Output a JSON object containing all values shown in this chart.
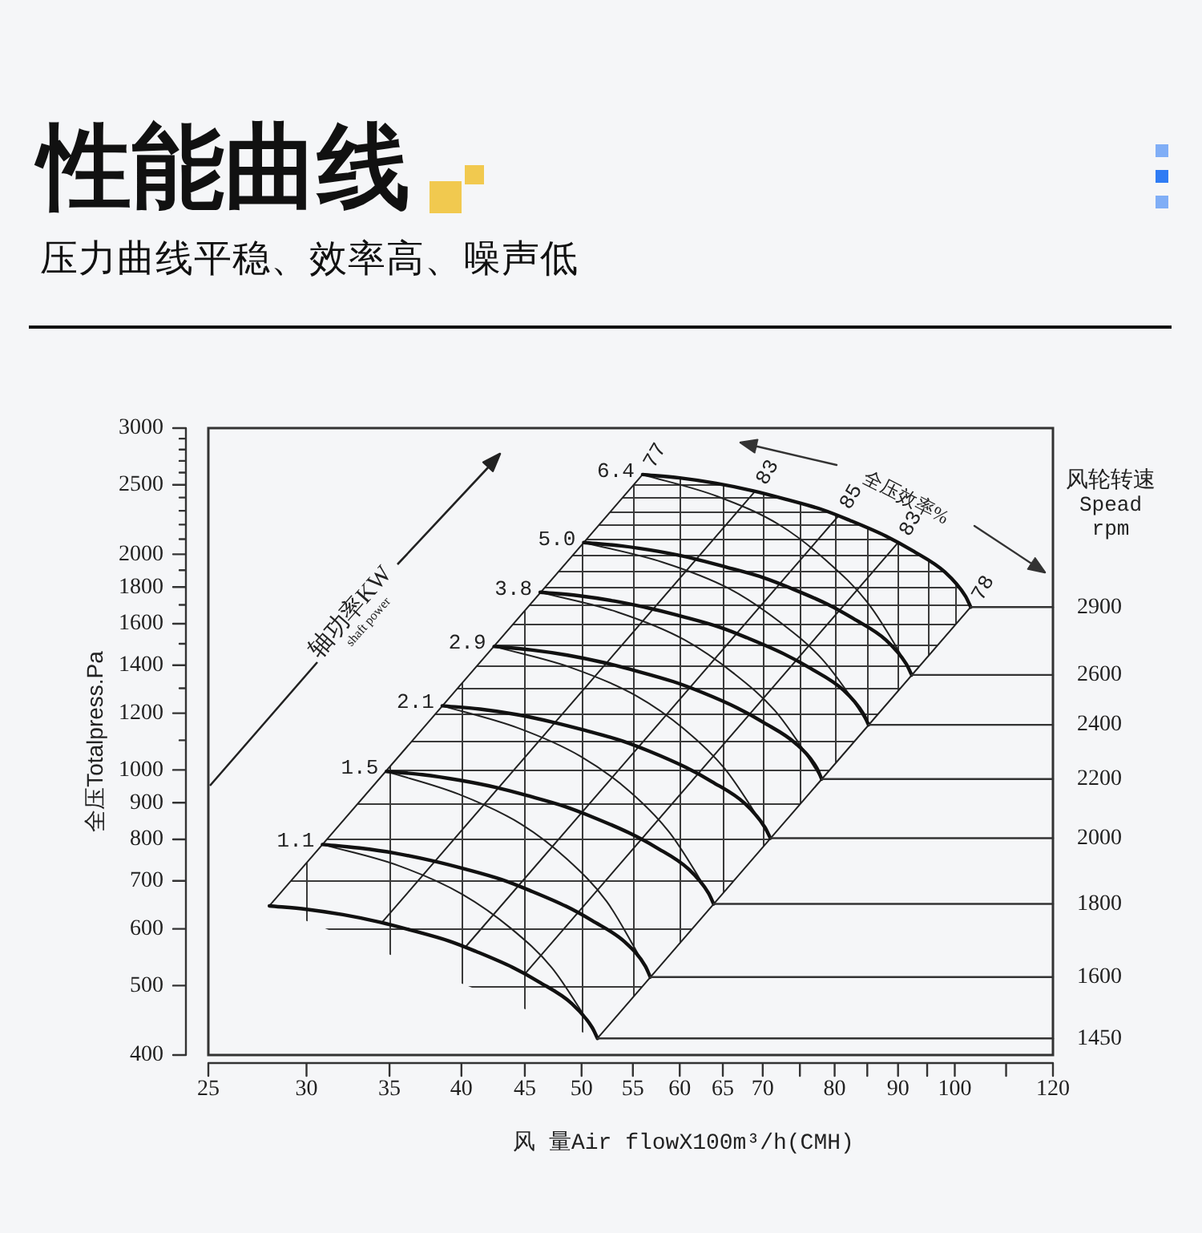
{
  "chart_data": {
    "type": "line",
    "title": "性能曲线",
    "subtitle": "压力曲线平稳、效率高、噪声低",
    "xlabel": "风 量Air flowX100m³/h(CMH)",
    "ylabel": "全压Totalpress.Pa",
    "annotations": [
      "轴功率KW",
      "shaft power",
      "全压效率%",
      "风轮转速\nSpead\nrpm",
      {
        "text": "2900",
        "x": 103,
        "y": 1688
      },
      {
        "text": "2600",
        "x": 92.3,
        "y": 1357
      },
      {
        "text": "2400",
        "x": 85.2,
        "y": 1156
      },
      {
        "text": "2200",
        "x": 78.1,
        "y": 971
      },
      {
        "text": "2000",
        "x": 71,
        "y": 803
      },
      {
        "text": "1800",
        "x": 63.9,
        "y": 650
      },
      {
        "text": "1600",
        "x": 56.8,
        "y": 514
      },
      {
        "text": "1450",
        "x": 51.5,
        "y": 422
      }
    ],
    "log": "xy",
    "grid": true,
    "marker": "none",
    "xlim": [
      25,
      120
    ],
    "xticks": [
      25,
      30,
      35,
      40,
      45,
      50,
      55,
      60,
      65,
      70,
      {
        "value": 75,
        "label": null
      },
      80,
      {
        "value": 85,
        "label": null
      },
      90,
      {
        "value": 95,
        "label": null
      },
      100,
      {
        "value": 110,
        "label": null
      },
      120
    ],
    "ylim": [
      400,
      3000
    ],
    "yticks": [
      400,
      500,
      600,
      700,
      800,
      900,
      1000,
      {
        "value": 1100,
        "label": null
      },
      1200,
      {
        "value": 1300,
        "label": null
      },
      1400,
      {
        "value": 1500,
        "label": null
      },
      1600,
      {
        "value": 1700,
        "label": null
      },
      1800,
      {
        "value": 1900,
        "label": null
      },
      2000,
      {
        "value": 2100,
        "label": null
      },
      {
        "value": 2200,
        "label": null
      },
      {
        "value": 2300,
        "label": null
      },
      {
        "value": 2400,
        "label": null
      },
      2500,
      {
        "value": 2600,
        "label": null
      },
      {
        "value": 2700,
        "label": null
      },
      {
        "value": 2800,
        "label": null
      },
      {
        "value": 2900,
        "label": null
      },
      3000
    ],
    "series": [
      {
        "color": "#111111",
        "x": [
          56,
          60,
          64.2,
          68.8,
          73,
          78.2,
          82.2,
          88,
          92.4,
          98.2,
          102,
          103
        ],
        "values": [
          2584,
          2556,
          2512,
          2452,
          2388,
          2308,
          2232,
          2120,
          2024,
          1888,
          1748,
          1688
        ]
      },
      {
        "color": "#111111",
        "x": [
          50.2,
          53.8,
          57.6,
          61.7,
          65.4,
          70.1,
          73.7,
          78.9,
          82.8,
          88,
          91.4,
          92.3
        ],
        "values": [
          2077,
          2055,
          2019,
          1971,
          1919,
          1855,
          1794,
          1704,
          1627,
          1518,
          1405,
          1357
        ]
      },
      {
        "color": "#111111",
        "x": [
          46.3,
          49.7,
          53.1,
          56.9,
          60.4,
          64.7,
          68,
          72.8,
          76.5,
          81.3,
          84.4,
          85.2
        ],
        "values": [
          1770,
          1751,
          1721,
          1679,
          1636,
          1581,
          1529,
          1452,
          1386,
          1293,
          1197,
          1156
        ]
      },
      {
        "color": "#111111",
        "x": [
          42.5,
          45.5,
          48.7,
          52.2,
          55.4,
          59.3,
          62.4,
          66.8,
          70.1,
          74.5,
          77.4,
          78.1
        ],
        "values": [
          1487,
          1471,
          1446,
          1411,
          1374,
          1328,
          1285,
          1220,
          1165,
          1087,
          1006,
          971
        ]
      },
      {
        "color": "#111111",
        "x": [
          38.6,
          41.4,
          44.3,
          47.4,
          50.3,
          53.9,
          56.7,
          60.7,
          63.7,
          67.7,
          70.3,
          71
        ],
        "values": [
          1229,
          1216,
          1195,
          1166,
          1136,
          1098,
          1062,
          1008,
          963,
          898,
          831,
          803
        ]
      },
      {
        "color": "#111111",
        "x": [
          34.8,
          37.2,
          39.8,
          42.7,
          45.3,
          48.5,
          51,
          54.6,
          57.4,
          61,
          63.3,
          63.9
        ],
        "values": [
          995,
          985,
          968,
          945,
          920,
          889,
          860,
          817,
          780,
          727,
          673,
          650
        ]
      },
      {
        "color": "#111111",
        "x": [
          30.9,
          33.1,
          35.4,
          38,
          40.3,
          43.1,
          45.4,
          48.6,
          51,
          54.2,
          56.3,
          56.8
        ],
        "values": [
          787,
          778,
          765,
          746,
          727,
          703,
          679,
          645,
          616,
          575,
          532,
          514
        ]
      },
      {
        "color": "#111111",
        "x": [
          28,
          30,
          32.1,
          34.4,
          36.5,
          39.1,
          41.1,
          44,
          46.2,
          49.1,
          51,
          51.5
        ],
        "values": [
          646,
          639,
          628,
          613,
          597,
          577,
          558,
          530,
          506,
          472,
          437,
          422
        ]
      },
      {
        "name": "6.4",
        "color": "#222222",
        "x": [
          56,
          64.3,
          72.3,
          78.9,
          85,
          89.3,
          92.3
        ],
        "values": [
          2584,
          2410,
          2195,
          1955,
          1715,
          1505,
          1357
        ]
      },
      {
        "name": "5.0",
        "color": "#222222",
        "x": [
          50.2,
          58.1,
          65.8,
          72.2,
          78.1,
          82.3,
          85.2
        ],
        "values": [
          2077,
          1950,
          1790,
          1610,
          1430,
          1270,
          1156
        ]
      },
      {
        "name": "3.8",
        "color": "#222222",
        "x": [
          46.3,
          53.5,
          60.5,
          66.3,
          71.6,
          75.4,
          78.1
        ],
        "values": [
          1770,
          1660,
          1520,
          1365,
          1210,
          1070,
          971
        ]
      },
      {
        "name": "2.9",
        "color": "#222222",
        "x": [
          42.5,
          49,
          55.3,
          60.5,
          65.2,
          68.6,
          71
        ],
        "values": [
          1487,
          1390,
          1270,
          1140,
          1005,
          885,
          803
        ]
      },
      {
        "name": "2.1",
        "color": "#222222",
        "x": [
          38.6,
          44.4,
          49.9,
          54.6,
          58.8,
          61.8,
          63.9
        ],
        "values": [
          1229,
          1145,
          1045,
          935,
          820,
          720,
          650
        ]
      },
      {
        "name": "1.5",
        "color": "#222222",
        "x": [
          34.8,
          39.8,
          44.7,
          48.7,
          52.4,
          55,
          56.8
        ],
        "values": [
          995,
          925,
          840,
          750,
          655,
          570,
          514
        ]
      },
      {
        "name": "1.1",
        "color": "#222222",
        "x": [
          30.9,
          35.6,
          40.1,
          43.9,
          47.3,
          49.8,
          51.5
        ],
        "values": [
          787,
          735,
          670,
          600,
          530,
          465,
          422
        ]
      },
      {
        "name": "77",
        "color": "#222222",
        "x": [
          28,
          56
        ],
        "values": [
          646,
          2584
        ]
      },
      {
        "name": "83",
        "color": "#222222",
        "x": [
          34.5,
          69
        ],
        "values": [
          612,
          2448
        ]
      },
      {
        "name": "85",
        "color": "#222222",
        "x": [
          40.3,
          80.6
        ],
        "values": [
          566,
          2264
        ]
      },
      {
        "name": "83",
        "color": "#222222",
        "x": [
          45,
          90
        ],
        "values": [
          519,
          2076
        ]
      },
      {
        "name": "78",
        "color": "#222222",
        "x": [
          51.5,
          103
        ],
        "values": [
          422,
          1688
        ]
      }
    ]
  }
}
